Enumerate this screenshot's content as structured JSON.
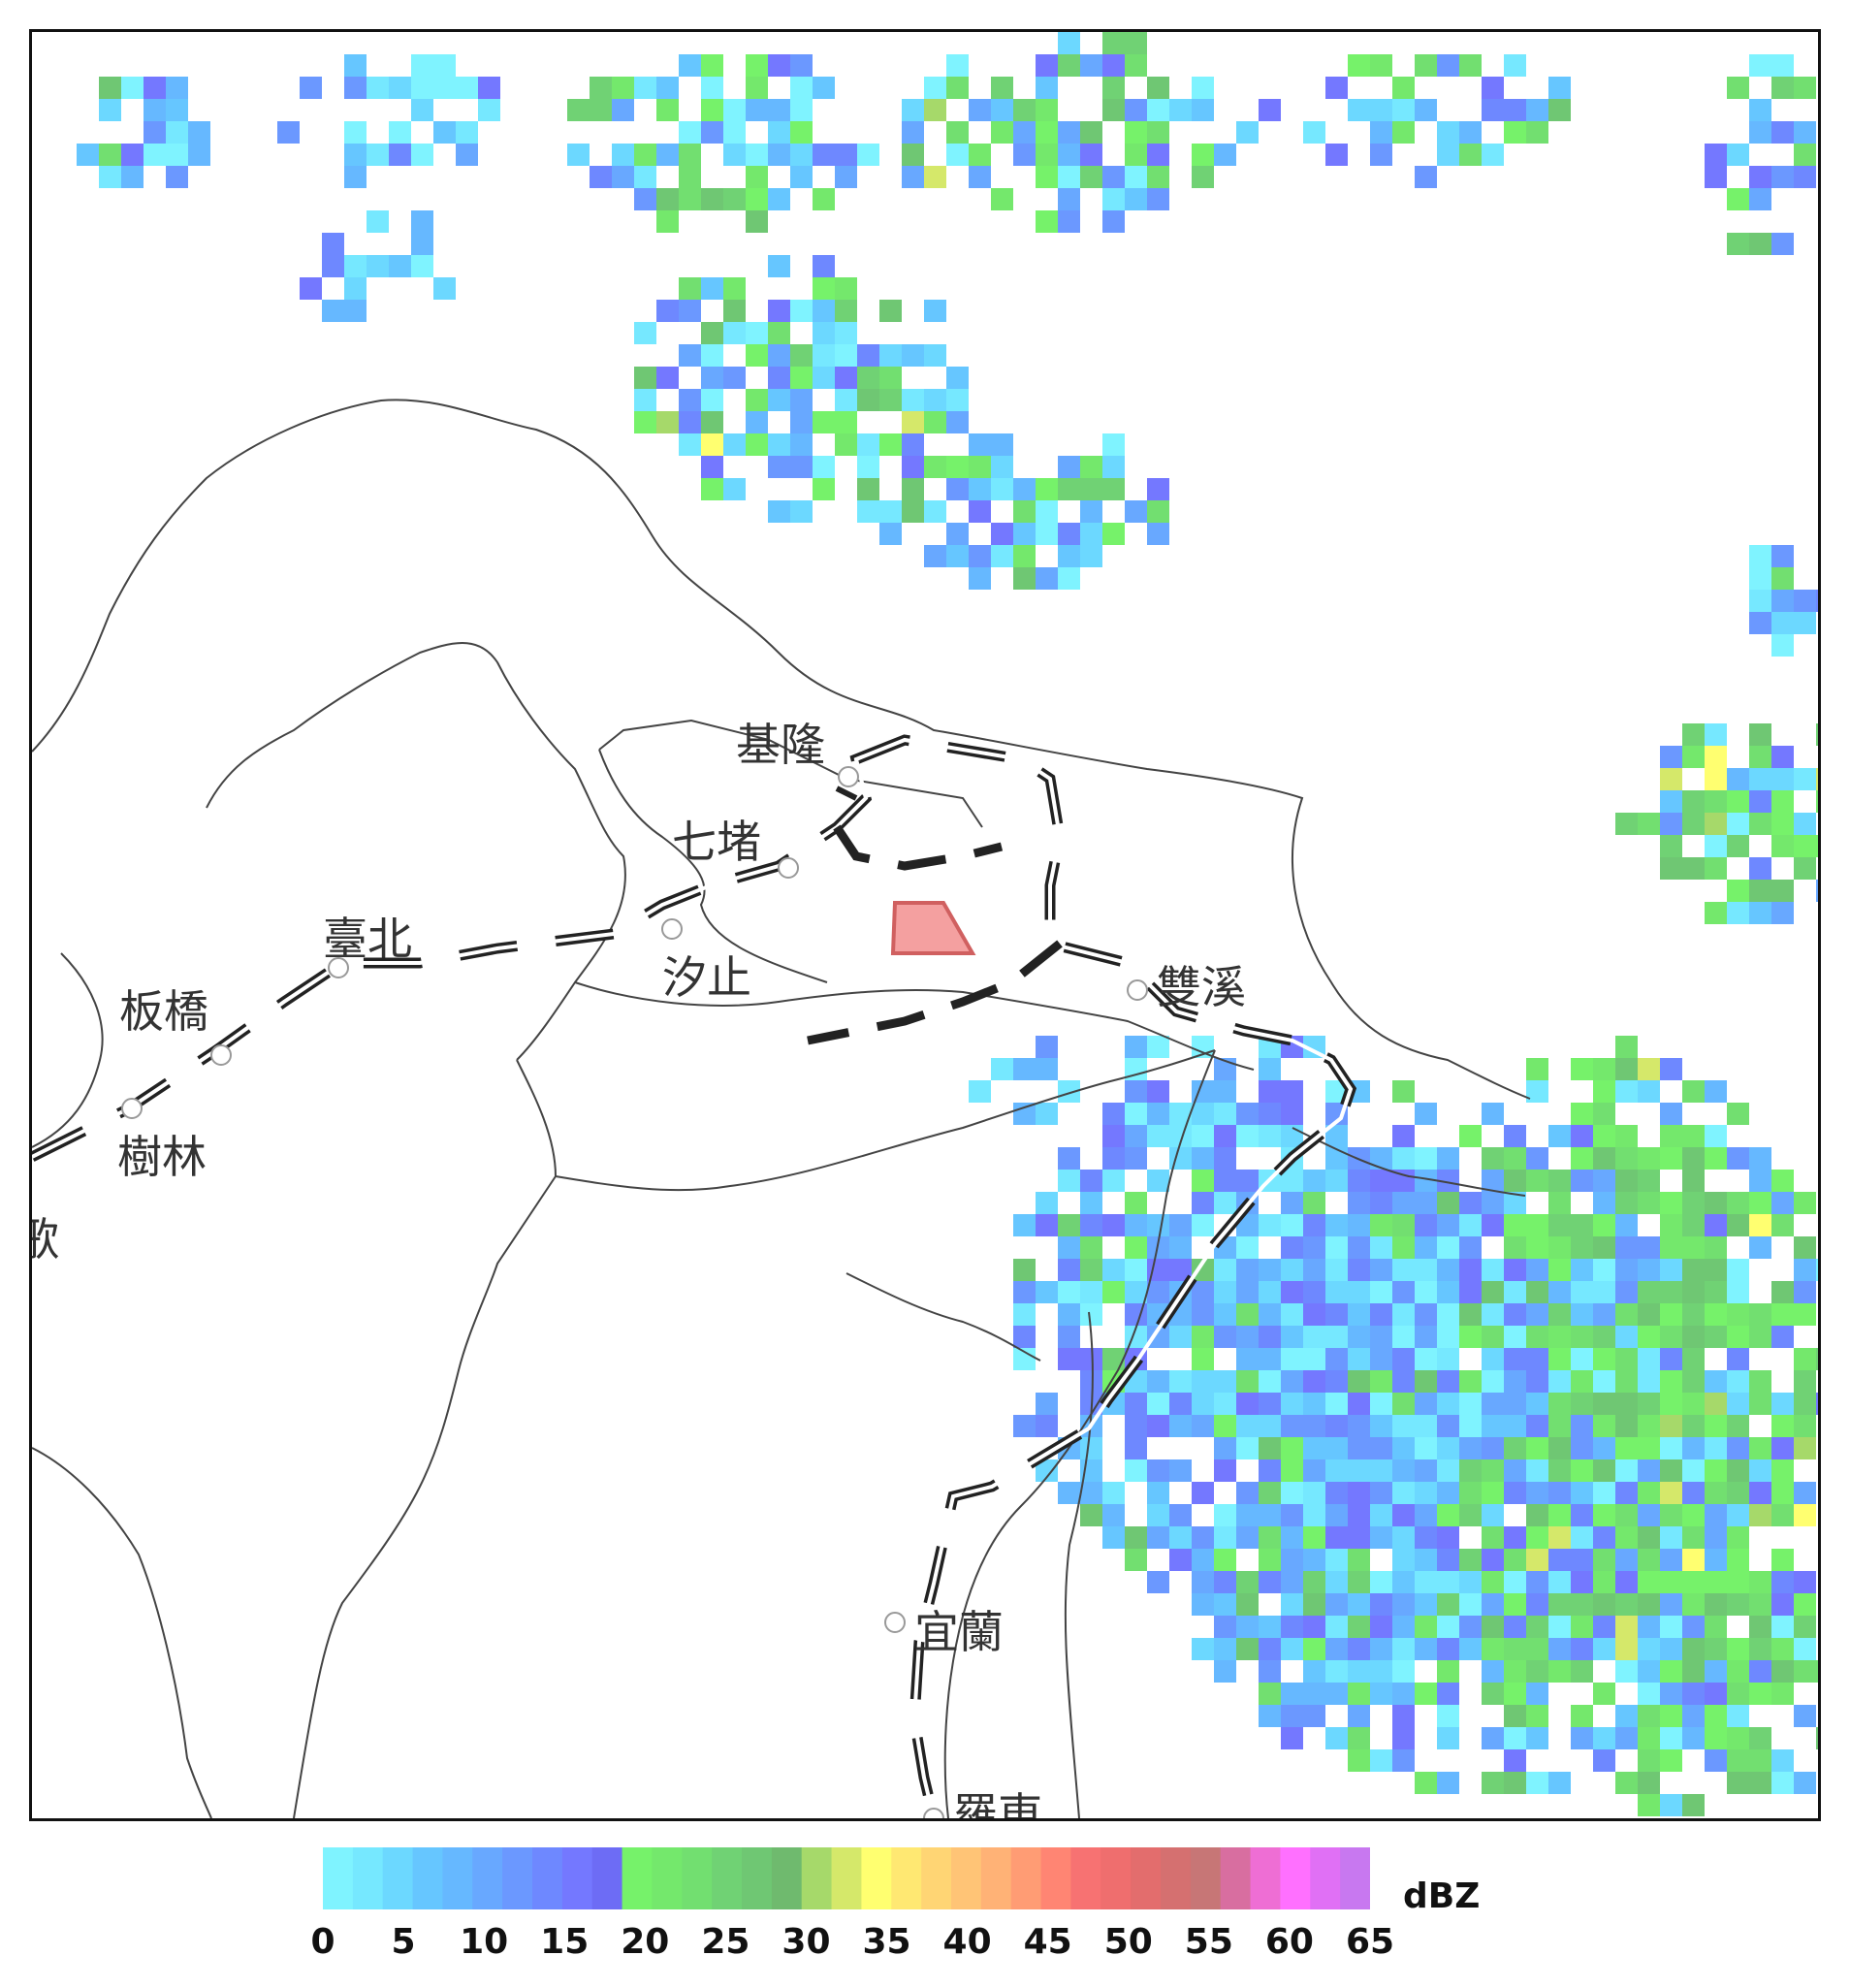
{
  "map": {
    "stations": [
      {
        "id": "keelung",
        "label": "基隆"
      },
      {
        "id": "qidu",
        "label": "七堵"
      },
      {
        "id": "taipei",
        "label": "臺北"
      },
      {
        "id": "xizhi",
        "label": "汐止"
      },
      {
        "id": "banqiao",
        "label": "板橋"
      },
      {
        "id": "shulin",
        "label": "樹林"
      },
      {
        "id": "shuangxi",
        "label": "雙溪"
      },
      {
        "id": "yilan",
        "label": "宜蘭"
      },
      {
        "id": "luodong",
        "label": "羅東"
      },
      {
        "id": "yingge",
        "label": "歌"
      }
    ],
    "highlight_region_color": "#f08080"
  },
  "legend": {
    "unit": "dBZ",
    "ticks": [
      "0",
      "5",
      "10",
      "15",
      "20",
      "25",
      "30",
      "35",
      "40",
      "45",
      "50",
      "55",
      "60",
      "65"
    ],
    "colors": [
      "#7ff3ff",
      "#76e8ff",
      "#6cd8ff",
      "#66c6ff",
      "#66b8ff",
      "#68a8ff",
      "#6b98ff",
      "#6e88ff",
      "#7478ff",
      "#6d6cf5",
      "#76f26a",
      "#74e86c",
      "#72df70",
      "#70d274",
      "#6fc773",
      "#6fba6e",
      "#a6d96a",
      "#d5e86a",
      "#ffff70",
      "#ffe872",
      "#ffd574",
      "#ffc476",
      "#ffb276",
      "#ff9c74",
      "#ff8573",
      "#f77272",
      "#ef6e6e",
      "#e36d6d",
      "#d57070",
      "#c77676",
      "#d86ea0",
      "#ee6ed4",
      "#ff70ff",
      "#e070f5",
      "#c878f0"
    ]
  }
}
